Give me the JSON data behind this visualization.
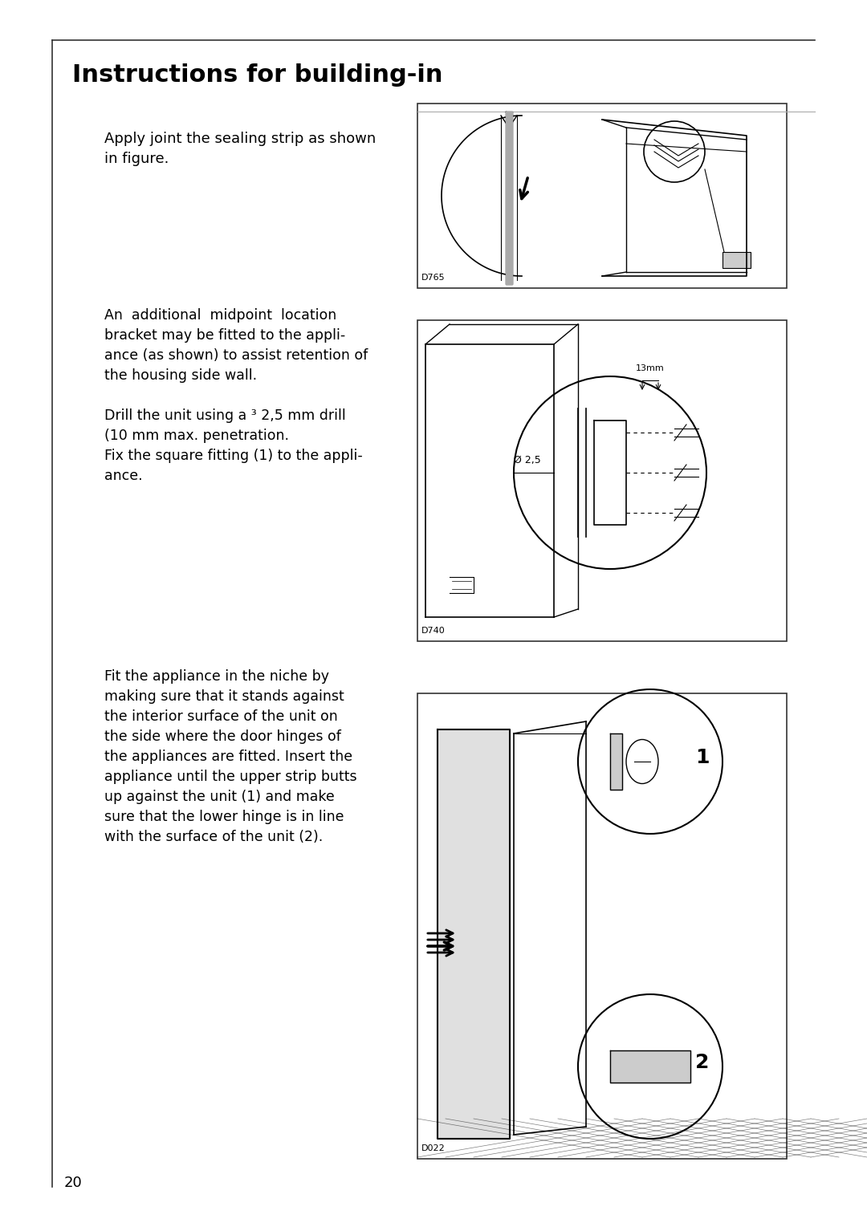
{
  "title": "Instructions for building-in",
  "page_number": "20",
  "background_color": "#ffffff",
  "border_color": "#333333",
  "text_color": "#000000",
  "section1_text": "Apply joint the sealing strip as shown\nin figure.",
  "section2_text1": "An  additional  midpoint  location\nbracket may be fitted to the appli-\nance (as shown) to assist retention of\nthe housing side wall.",
  "section2_text2": "Drill the unit using a ³ 2,5 mm drill\n(10 mm max. penetration.",
  "section2_text3": "Fix the square fitting (1) to the appli-\nance.",
  "section3_text": "Fit the appliance in the niche by\nmaking sure that it stands against\nthe interior surface of the unit on\nthe side where the door hinges of\nthe appliances are fitted. Insert the\nappliance until the upper strip butts\nup against the unit (1) and make\nsure that the lower hinge is in line\nwith the surface of the unit (2).",
  "img1_label": "D765",
  "img2_label": "D740",
  "img3_label": "D022",
  "img2_dim1": "13mm",
  "img2_dim2": "Ø 2,5"
}
